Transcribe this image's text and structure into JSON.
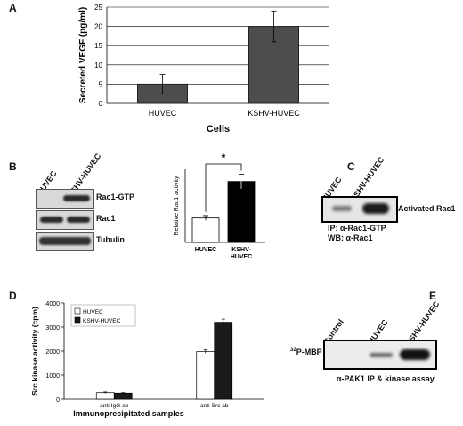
{
  "panels": {
    "A": {
      "letter": "A",
      "chart_data": {
        "type": "bar",
        "categories": [
          "HUVEC",
          "KSHV-HUVEC"
        ],
        "values": [
          5,
          20
        ],
        "errors": [
          2.5,
          4
        ],
        "xlabel": "Cells",
        "ylabel": "Secreted VEGF (pg/ml)",
        "ylim": [
          0,
          25
        ],
        "yticks": [
          "0",
          "5",
          "10",
          "15",
          "20",
          "25"
        ],
        "grid": true,
        "bar_color": "#4d4d4d"
      }
    },
    "B": {
      "letter": "B",
      "lane_labels": [
        "HUVEC",
        "KSHV-HUVEC"
      ],
      "blot_labels": [
        "Rac1-GTP",
        "Rac1",
        "Tubulin"
      ],
      "chart_data": {
        "type": "bar",
        "categories": [
          "HUVEC",
          "KSHV-\nHUVEC"
        ],
        "values": [
          1.0,
          2.5
        ],
        "errors": [
          0.1,
          0.3
        ],
        "ylabel": "Relative Rac1 activity",
        "ylim": [
          0,
          3
        ],
        "significance": "*",
        "bar_colors": [
          "#ffffff",
          "#000000"
        ]
      }
    },
    "C": {
      "letter": "C",
      "lane_labels": [
        "HUVEC",
        "KSHV-HUVEC"
      ],
      "band_label": "Activated Rac1",
      "ip_label": "IP:",
      "ip_value": "α-Rac1-GTP",
      "wb_label": "WB:",
      "wb_value": "α-Rac1"
    },
    "D": {
      "letter": "D",
      "chart_data": {
        "type": "bar",
        "categories": [
          "anti-IgG ab",
          "anti-Src ab"
        ],
        "series": [
          {
            "name": "HUVEC",
            "values": [
              270,
              1980
            ],
            "errors": [
              30,
              70
            ],
            "color": "#ffffff"
          },
          {
            "name": "KSHV-HUVEC",
            "values": [
              250,
              3200
            ],
            "errors": [
              20,
              130
            ],
            "color": "#1a1a1a"
          }
        ],
        "xlabel": "Immunoprecipitated samples",
        "ylabel": "Src kinase activity (cpm)",
        "ylim": [
          0,
          4000
        ],
        "yticks": [
          "0",
          "1000",
          "2000",
          "3000",
          "4000"
        ],
        "legend": "top-left"
      }
    },
    "E": {
      "letter": "E",
      "lane_labels": [
        "Control",
        "HUVEC",
        "KSHV-HUVEC"
      ],
      "band_label_sup": "32",
      "band_label": "P-MBP",
      "caption": "α-PAK1 IP & kinase assay"
    }
  }
}
